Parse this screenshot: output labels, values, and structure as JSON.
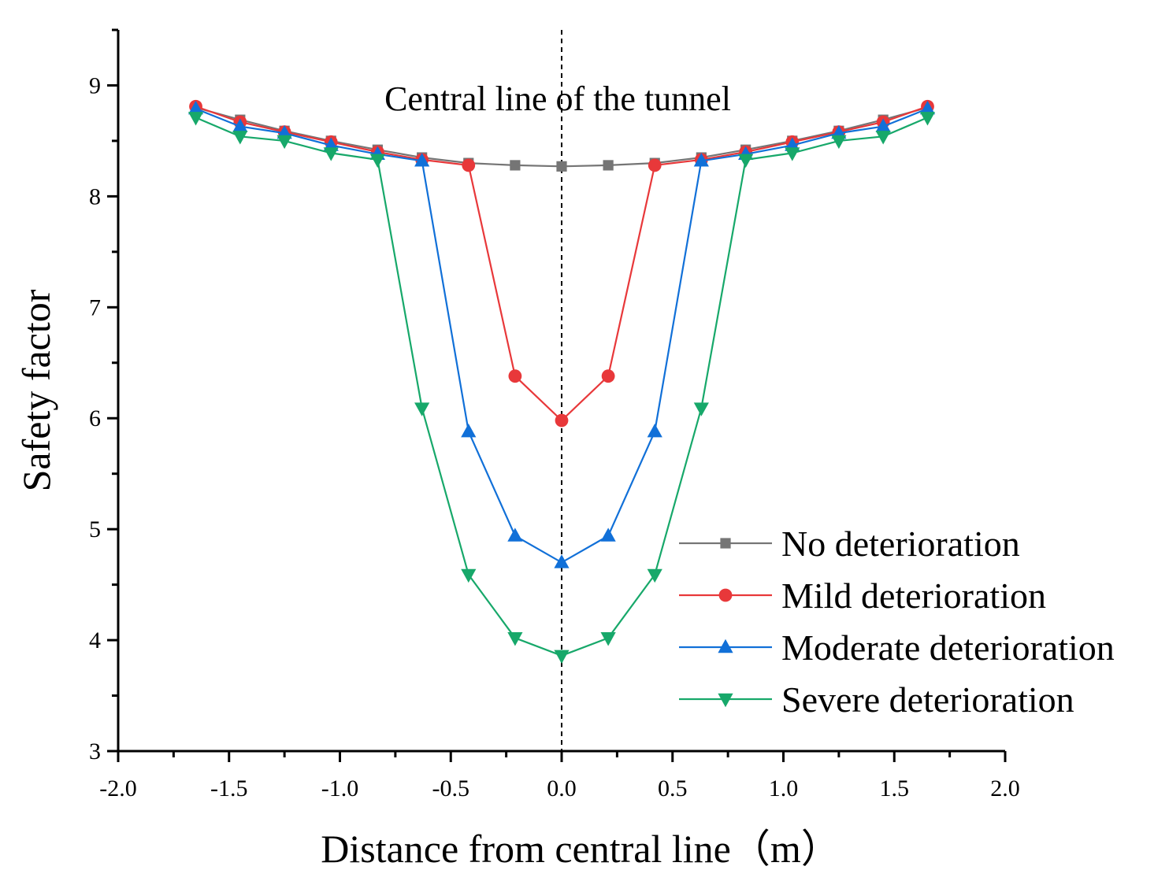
{
  "chart_data": {
    "type": "line",
    "title": "",
    "xlabel": "Distance from central line（m）",
    "ylabel": "Safety factor",
    "xlim": [
      -2.0,
      2.0
    ],
    "ylim": [
      3,
      9.5
    ],
    "x_ticks": [
      "-2.0",
      "-1.5",
      "-1.0",
      "-0.5",
      "0.0",
      "0.5",
      "1.0",
      "1.5",
      "2.0"
    ],
    "y_ticks": [
      "3",
      "4",
      "5",
      "6",
      "7",
      "8",
      "9"
    ],
    "annotation": "Central line of the tunnel",
    "x": [
      -1.65,
      -1.45,
      -1.25,
      -1.04,
      -0.83,
      -0.63,
      -0.42,
      -0.21,
      0.0,
      0.21,
      0.42,
      0.63,
      0.83,
      1.04,
      1.25,
      1.45,
      1.65
    ],
    "series": [
      {
        "name": "No deterioration",
        "color": "#757575",
        "marker": "square",
        "values": [
          8.8,
          8.69,
          8.59,
          8.5,
          8.42,
          8.35,
          8.3,
          8.28,
          8.27,
          8.28,
          8.3,
          8.35,
          8.42,
          8.5,
          8.59,
          8.69,
          8.8
        ]
      },
      {
        "name": "Mild deterioration",
        "color": "#e8383a",
        "marker": "circle",
        "values": [
          8.81,
          8.67,
          8.58,
          8.49,
          8.4,
          8.33,
          8.28,
          6.38,
          5.98,
          6.38,
          8.28,
          8.33,
          8.4,
          8.49,
          8.58,
          8.67,
          8.81
        ]
      },
      {
        "name": "Moderate deterioration",
        "color": "#1170d8",
        "marker": "triangle-up",
        "values": [
          8.79,
          8.63,
          8.57,
          8.46,
          8.38,
          8.32,
          5.88,
          4.94,
          4.7,
          4.94,
          5.88,
          8.32,
          8.38,
          8.46,
          8.57,
          8.63,
          8.79
        ]
      },
      {
        "name": "Severe deterioration",
        "color": "#17a86a",
        "marker": "triangle-down",
        "values": [
          8.71,
          8.54,
          8.5,
          8.39,
          8.33,
          6.09,
          4.59,
          4.02,
          3.86,
          4.02,
          4.59,
          6.09,
          8.33,
          8.39,
          8.5,
          8.54,
          8.71
        ]
      }
    ],
    "legend_position": "lower-right"
  }
}
